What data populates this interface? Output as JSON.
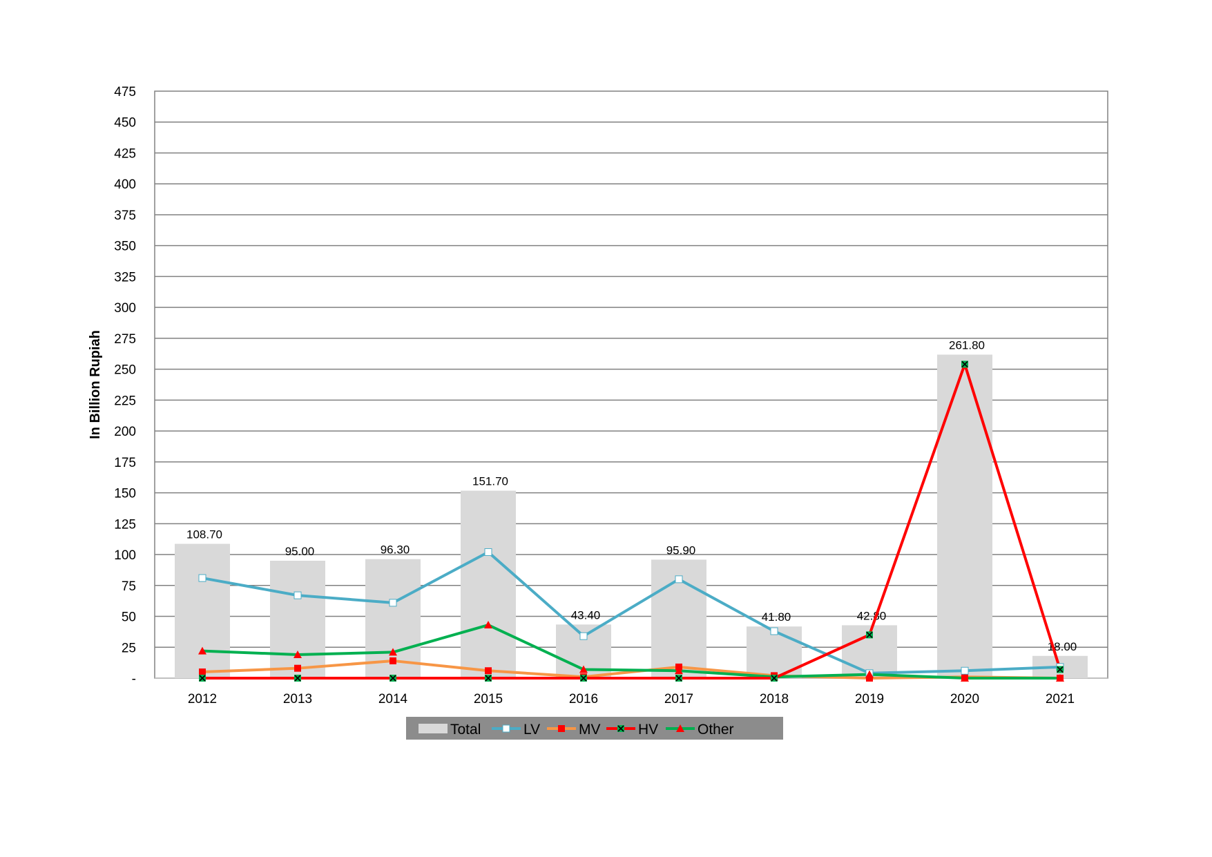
{
  "chart_data": {
    "type": "bar",
    "ylabel": "In Billion Rupiah",
    "xlabel": "",
    "ylim": [
      0,
      475
    ],
    "yticks": [
      0,
      25,
      50,
      75,
      100,
      125,
      150,
      175,
      200,
      225,
      250,
      275,
      300,
      325,
      350,
      375,
      400,
      425,
      450,
      475
    ],
    "ytick_labels": [
      "-",
      "25",
      "50",
      "75",
      "100",
      "125",
      "150",
      "175",
      "200",
      "225",
      "250",
      "275",
      "300",
      "325",
      "350",
      "375",
      "400",
      "425",
      "450",
      "475"
    ],
    "categories": [
      "2012",
      "2013",
      "2014",
      "2015",
      "2016",
      "2017",
      "2018",
      "2019",
      "2020",
      "2021"
    ],
    "grid": true,
    "legend_position": "bottom",
    "bars": {
      "name": "Total",
      "color": "#d9d9d9",
      "values": [
        108.7,
        95.0,
        96.3,
        151.7,
        43.4,
        95.9,
        41.8,
        42.8,
        261.8,
        18.0
      ],
      "labels": [
        "108.70",
        "95.00",
        "96.30",
        "151.70",
        "43.40",
        "95.90",
        "41.80",
        "42.80",
        "261.80",
        "18.00"
      ]
    },
    "series": [
      {
        "name": "LV",
        "type": "line",
        "color": "#4bacc6",
        "marker": "square-white",
        "values": [
          81,
          67,
          61,
          102,
          34,
          80,
          38,
          4,
          6,
          9
        ]
      },
      {
        "name": "MV",
        "type": "line",
        "color": "#f79646",
        "marker": "square-red",
        "values": [
          5,
          8,
          14,
          6,
          1,
          9,
          2,
          0,
          1,
          0
        ]
      },
      {
        "name": "HV",
        "type": "line",
        "color": "#ff0000",
        "marker": "x-green",
        "values": [
          0,
          0,
          0,
          0,
          0,
          0,
          0,
          35,
          254,
          7
        ]
      },
      {
        "name": "Other",
        "type": "line",
        "color": "#00b050",
        "marker": "triangle-red",
        "values": [
          22,
          19,
          21,
          43,
          7,
          6,
          1,
          3,
          0,
          0
        ]
      }
    ]
  }
}
